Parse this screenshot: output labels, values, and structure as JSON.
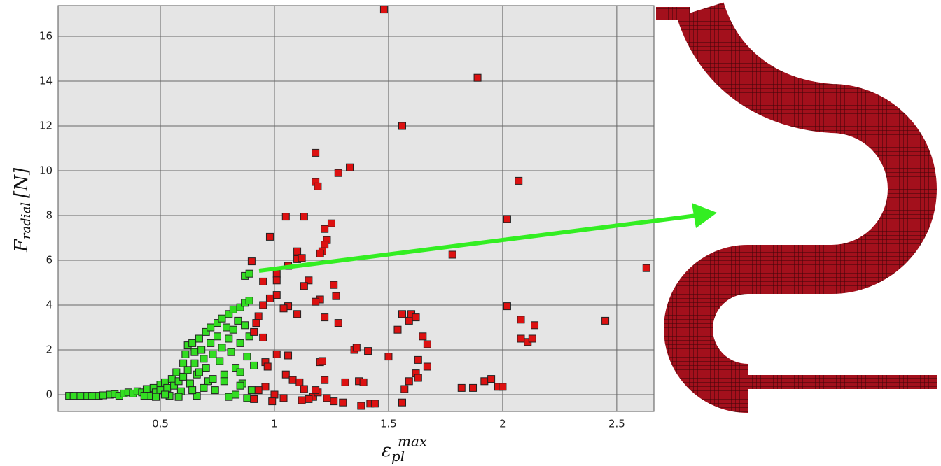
{
  "chart_data": {
    "type": "scatter",
    "ylabel_main": "F",
    "ylabel_sub": "radial",
    "ylabel_unit": "[N]",
    "xlabel_main": "ε",
    "xlabel_sub": "pl",
    "xlabel_sup": "max",
    "xlim": [
      0.052,
      2.663
    ],
    "ylim": [
      -0.75,
      17.375
    ],
    "xticks": [
      0.5,
      1,
      1.5,
      2,
      2.5
    ],
    "yticks": [
      0,
      2,
      4,
      6,
      8,
      10,
      12,
      14,
      16
    ],
    "grid": true,
    "series": [
      {
        "color": "#33dd22",
        "x": [
          0.1,
          0.12,
          0.15,
          0.18,
          0.2,
          0.23,
          0.25,
          0.28,
          0.3,
          0.32,
          0.34,
          0.36,
          0.38,
          0.4,
          0.42,
          0.44,
          0.45,
          0.47,
          0.48,
          0.5,
          0.5,
          0.52,
          0.53,
          0.54,
          0.55,
          0.56,
          0.57,
          0.58,
          0.59,
          0.6,
          0.6,
          0.61,
          0.62,
          0.62,
          0.63,
          0.64,
          0.65,
          0.65,
          0.66,
          0.66,
          0.67,
          0.68,
          0.69,
          0.7,
          0.7,
          0.71,
          0.72,
          0.72,
          0.73,
          0.74,
          0.75,
          0.75,
          0.76,
          0.77,
          0.77,
          0.78,
          0.79,
          0.8,
          0.8,
          0.8,
          0.81,
          0.82,
          0.82,
          0.83,
          0.84,
          0.85,
          0.85,
          0.86,
          0.87,
          0.87,
          0.88,
          0.89,
          0.89,
          0.9,
          0.87,
          0.89,
          0.85,
          0.83,
          0.78,
          0.73,
          0.69,
          0.64,
          0.58,
          0.52,
          0.48,
          0.43,
          0.88,
          0.85,
          0.91,
          0.67
        ],
        "values": [
          -0.05,
          -0.05,
          -0.05,
          -0.05,
          -0.05,
          -0.05,
          -0.03,
          0,
          0.02,
          -0.05,
          0.05,
          0.1,
          0.05,
          0.15,
          0.1,
          0.25,
          -0.05,
          0.3,
          0.1,
          0.45,
          0.2,
          0.55,
          0.3,
          -0.05,
          0.7,
          0.4,
          1.0,
          0.6,
          0.15,
          1.4,
          0.8,
          1.8,
          2.2,
          1.1,
          0.5,
          2.3,
          1.9,
          1.4,
          0.9,
          -0.05,
          2.5,
          2.0,
          1.6,
          2.8,
          1.2,
          0.6,
          3.0,
          2.3,
          1.8,
          0.2,
          3.2,
          2.6,
          1.5,
          3.4,
          2.1,
          0.9,
          3.0,
          3.6,
          2.5,
          -0.1,
          1.9,
          3.8,
          2.9,
          1.2,
          3.3,
          3.9,
          2.3,
          0.5,
          4.1,
          3.1,
          1.7,
          4.2,
          2.6,
          0.2,
          5.3,
          5.4,
          0.4,
          0.0,
          0.6,
          0.7,
          0.3,
          0.2,
          -0.1,
          0.0,
          -0.1,
          -0.05,
          -0.15,
          1.0,
          1.3,
          1.0
        ]
      },
      {
        "color": "#dd1111",
        "x": [
          1.48,
          1.89,
          1.56,
          1.18,
          1.18,
          1.19,
          1.28,
          1.33,
          2.07,
          2.02,
          1.05,
          1.13,
          1.25,
          0.98,
          1.22,
          1.23,
          1.22,
          1.21,
          1.2,
          1.1,
          1.1,
          1.12,
          1.06,
          0.9,
          1.01,
          1.01,
          0.95,
          1.78,
          2.63,
          1.15,
          1.13,
          1.26,
          1.2,
          1.18,
          1.27,
          1.06,
          1.04,
          1.1,
          1.01,
          0.98,
          0.95,
          0.93,
          0.92,
          0.91,
          0.95,
          1.22,
          1.28,
          1.56,
          1.59,
          1.6,
          1.54,
          1.62,
          1.65,
          1.67,
          2.02,
          2.08,
          2.14,
          2.45,
          2.08,
          2.11,
          2.13,
          1.35,
          1.36,
          1.41,
          1.5,
          1.63,
          1.67,
          1.62,
          1.59,
          1.57,
          1.56,
          1.63,
          1.2,
          1.21,
          1.06,
          1.01,
          0.96,
          0.97,
          1.05,
          1.08,
          1.11,
          1.13,
          1.22,
          1.31,
          1.37,
          1.39,
          1.82,
          1.87,
          1.92,
          1.95,
          1.98,
          2.0,
          1.38,
          1.42,
          1.44,
          1.3,
          1.26,
          1.23,
          1.17,
          1.15,
          1.12,
          1.04,
          1.0,
          0.96,
          0.93,
          0.91,
          0.99,
          1.19,
          1.18
        ],
        "values": [
          17.2,
          14.15,
          12.0,
          10.8,
          9.5,
          9.3,
          9.9,
          10.15,
          9.55,
          7.85,
          7.95,
          7.95,
          7.65,
          7.05,
          7.4,
          6.9,
          6.7,
          6.4,
          6.3,
          6.4,
          6.05,
          6.1,
          5.75,
          5.95,
          5.4,
          5.1,
          5.05,
          6.25,
          5.65,
          5.1,
          4.85,
          4.9,
          4.25,
          4.15,
          4.4,
          3.95,
          3.85,
          3.6,
          4.45,
          4.3,
          4.0,
          3.5,
          3.2,
          2.8,
          2.55,
          3.45,
          3.2,
          3.6,
          3.3,
          3.6,
          2.9,
          3.45,
          2.6,
          2.25,
          3.95,
          3.35,
          3.1,
          3.3,
          2.5,
          2.35,
          2.5,
          2.0,
          2.1,
          1.95,
          1.7,
          1.55,
          1.25,
          0.95,
          0.6,
          0.25,
          -0.35,
          0.75,
          1.45,
          1.5,
          1.75,
          1.8,
          1.45,
          1.25,
          0.9,
          0.65,
          0.55,
          0.25,
          0.65,
          0.55,
          0.6,
          0.55,
          0.3,
          0.3,
          0.6,
          0.7,
          0.35,
          0.35,
          -0.5,
          -0.4,
          -0.4,
          -0.35,
          -0.3,
          -0.15,
          -0.1,
          -0.2,
          -0.25,
          -0.15,
          0.0,
          0.35,
          0.2,
          -0.2,
          -0.3,
          0.1,
          0.2
        ]
      }
    ]
  }
}
